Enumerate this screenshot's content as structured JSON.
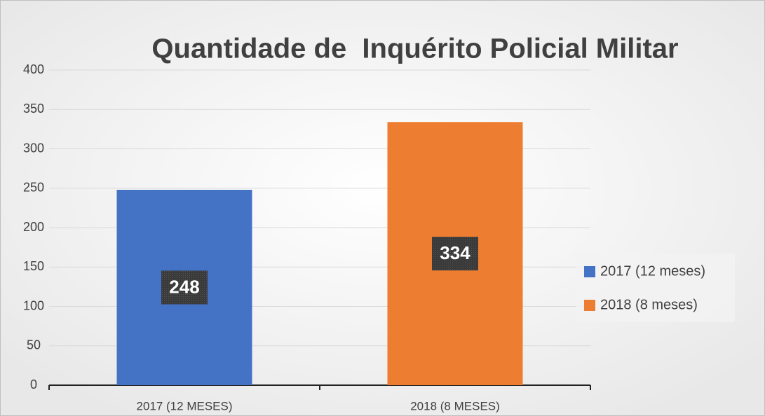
{
  "chart_data": {
    "type": "bar",
    "title": "Quantidade de  Inquérito Policial Militar",
    "categories": [
      "2017 (12 MESES)",
      "2018 (8 MESES)"
    ],
    "values": [
      248,
      334
    ],
    "colors": [
      "#4472c4",
      "#ed7d31"
    ],
    "legend_labels": [
      "2017 (12 meses)",
      "2018 (8 meses)"
    ],
    "legend": "right",
    "ylim": [
      0,
      400
    ],
    "yticks": [
      0,
      50,
      100,
      150,
      200,
      250,
      300,
      350,
      400
    ],
    "grid": true
  }
}
